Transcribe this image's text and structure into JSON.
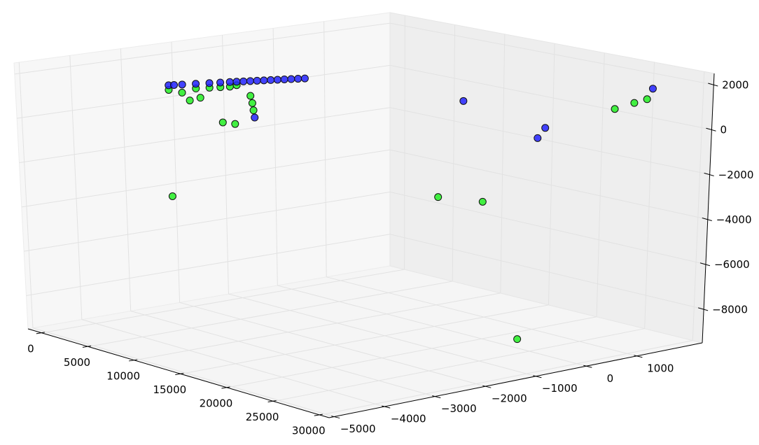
{
  "chart_data": {
    "type": "scatter3d",
    "xlim": [
      -1500,
      31000
    ],
    "ylim": [
      -5100,
      2300
    ],
    "zlim": [
      -9500,
      2500
    ],
    "xticks": [
      0,
      5000,
      10000,
      15000,
      20000,
      25000,
      30000
    ],
    "yticks": [
      {
        "value": -5000,
        "label": "−5000"
      },
      {
        "value": -4000,
        "label": "−4000"
      },
      {
        "value": -3000,
        "label": "−3000"
      },
      {
        "value": -2000,
        "label": "−2000"
      },
      {
        "value": -1000,
        "label": "−1000"
      },
      0,
      1000
    ],
    "zticks": [
      {
        "value": -8000,
        "label": "−8000"
      },
      {
        "value": -6000,
        "label": "−6000"
      },
      {
        "value": -4000,
        "label": "−4000"
      },
      {
        "value": -2000,
        "label": "−2000"
      },
      0,
      2000
    ],
    "grid": true,
    "series": [
      {
        "color": "#22ee22",
        "x": [
          8518,
          9214,
          9562,
          9840,
          10084,
          10258,
          10000,
          10000,
          10000,
          10000,
          10000,
          10000,
          10000,
          10000,
          10000,
          25000,
          25000,
          25000,
          25000,
          25000,
          25000
        ],
        "y": [
          -3970,
          -3570,
          -3370,
          -3210,
          -3070,
          -2970,
          -4235,
          -3208,
          -2969,
          -3988,
          -3841,
          -3634,
          -2658,
          -2624,
          -2604,
          -1833,
          -964,
          1568,
          1941,
          2186,
          -246
        ],
        "z": [
          1600,
          1600,
          1600,
          1600,
          1600,
          1650,
          -2800,
          80,
          -56,
          1580,
          1204,
          1267,
          1084,
          757,
          436,
          -2313,
          -2762,
          577,
          755,
          862,
          -8876
        ]
      },
      {
        "color": "#2222ff",
        "x": [
          8518,
          8657,
          8866,
          9214,
          9562,
          9840,
          10084,
          10258,
          10431,
          10605,
          10779,
          10953,
          11127,
          11301,
          11475,
          11649,
          11823,
          11997,
          10000,
          10000,
          25000,
          25000,
          30000
        ],
        "y": [
          -3970,
          -3890,
          -3770,
          -3570,
          -3370,
          -3210,
          -3070,
          -2970,
          -2870,
          -2770,
          -2670,
          -2570,
          -2470,
          -2370,
          -2270,
          -2170,
          -2070,
          -1970,
          -2584,
          1509,
          231,
          87,
          1330
        ],
        "z": [
          1800,
          1800,
          1800,
          1800,
          1800,
          1800,
          1800,
          1800,
          1800,
          1800,
          1800,
          1800,
          1800,
          1800,
          1800,
          1800,
          1800,
          1800,
          115,
          -353,
          78,
          -326,
          1938
        ]
      }
    ]
  }
}
